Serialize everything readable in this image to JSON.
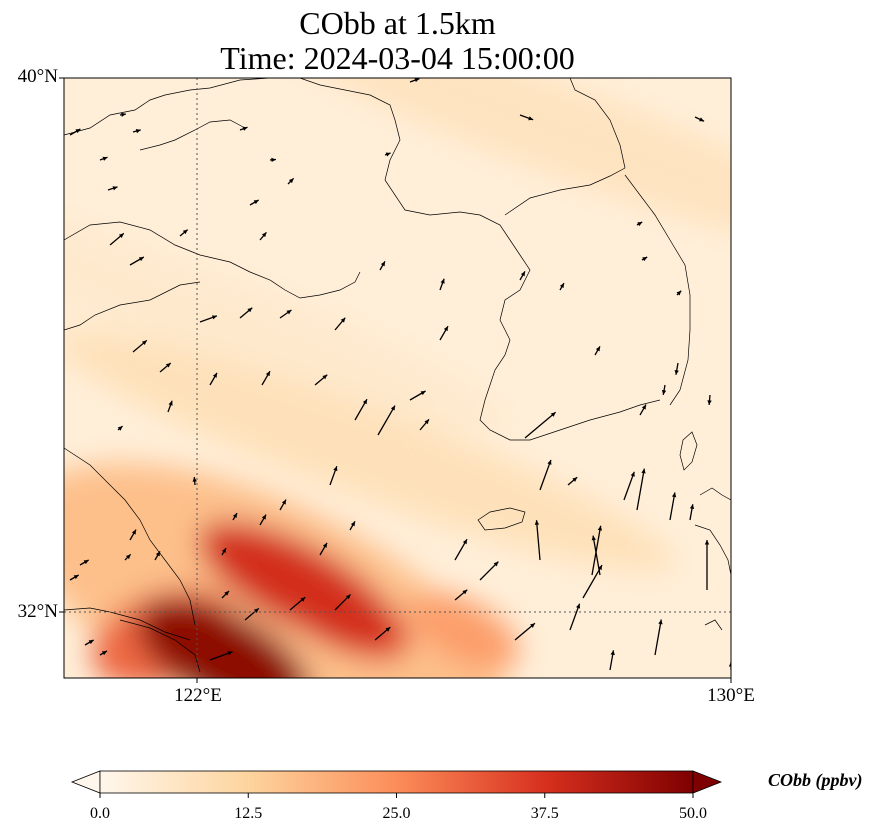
{
  "title": {
    "line1": "CObb at 1.5km",
    "line2": "Time: 2024-03-04 15:00:00"
  },
  "axes": {
    "lat_labels": [
      "40°N",
      "32°N"
    ],
    "lon_labels": [
      "122°E",
      "130°E"
    ]
  },
  "colorbar": {
    "label": "CObb (ppbv)",
    "ticks": [
      "0.0",
      "12.5",
      "25.0",
      "37.5",
      "50.0"
    ],
    "min": 0,
    "max": 50,
    "colormap": "OrRd",
    "extend": "both"
  },
  "chart_data": {
    "type": "heatmap",
    "variable": "CObb",
    "units": "ppbv",
    "level": "1.5km",
    "time": "2024-03-04 15:00:00",
    "lon_range": [
      120,
      130
    ],
    "lat_range": [
      31,
      40
    ],
    "gridlines": {
      "lon": [
        122,
        130
      ],
      "lat": [
        40,
        32
      ]
    },
    "hotspots": [
      {
        "lon": 122.4,
        "lat": 31.3,
        "value": 48
      },
      {
        "lon": 123.5,
        "lat": 32.4,
        "value": 38
      },
      {
        "lon": 124.1,
        "lat": 32.0,
        "value": 34
      },
      {
        "lon": 121.5,
        "lat": 31.6,
        "value": 30
      },
      {
        "lon": 126.0,
        "lat": 31.7,
        "value": 22
      }
    ],
    "background_bands": [
      {
        "lon": 122.0,
        "lat": 36.5,
        "value": 5
      },
      {
        "lon": 127.5,
        "lat": 39.2,
        "value": 7
      },
      {
        "lon": 124.5,
        "lat": 34.4,
        "value": 8
      }
    ],
    "wind_vectors_shown": true
  }
}
